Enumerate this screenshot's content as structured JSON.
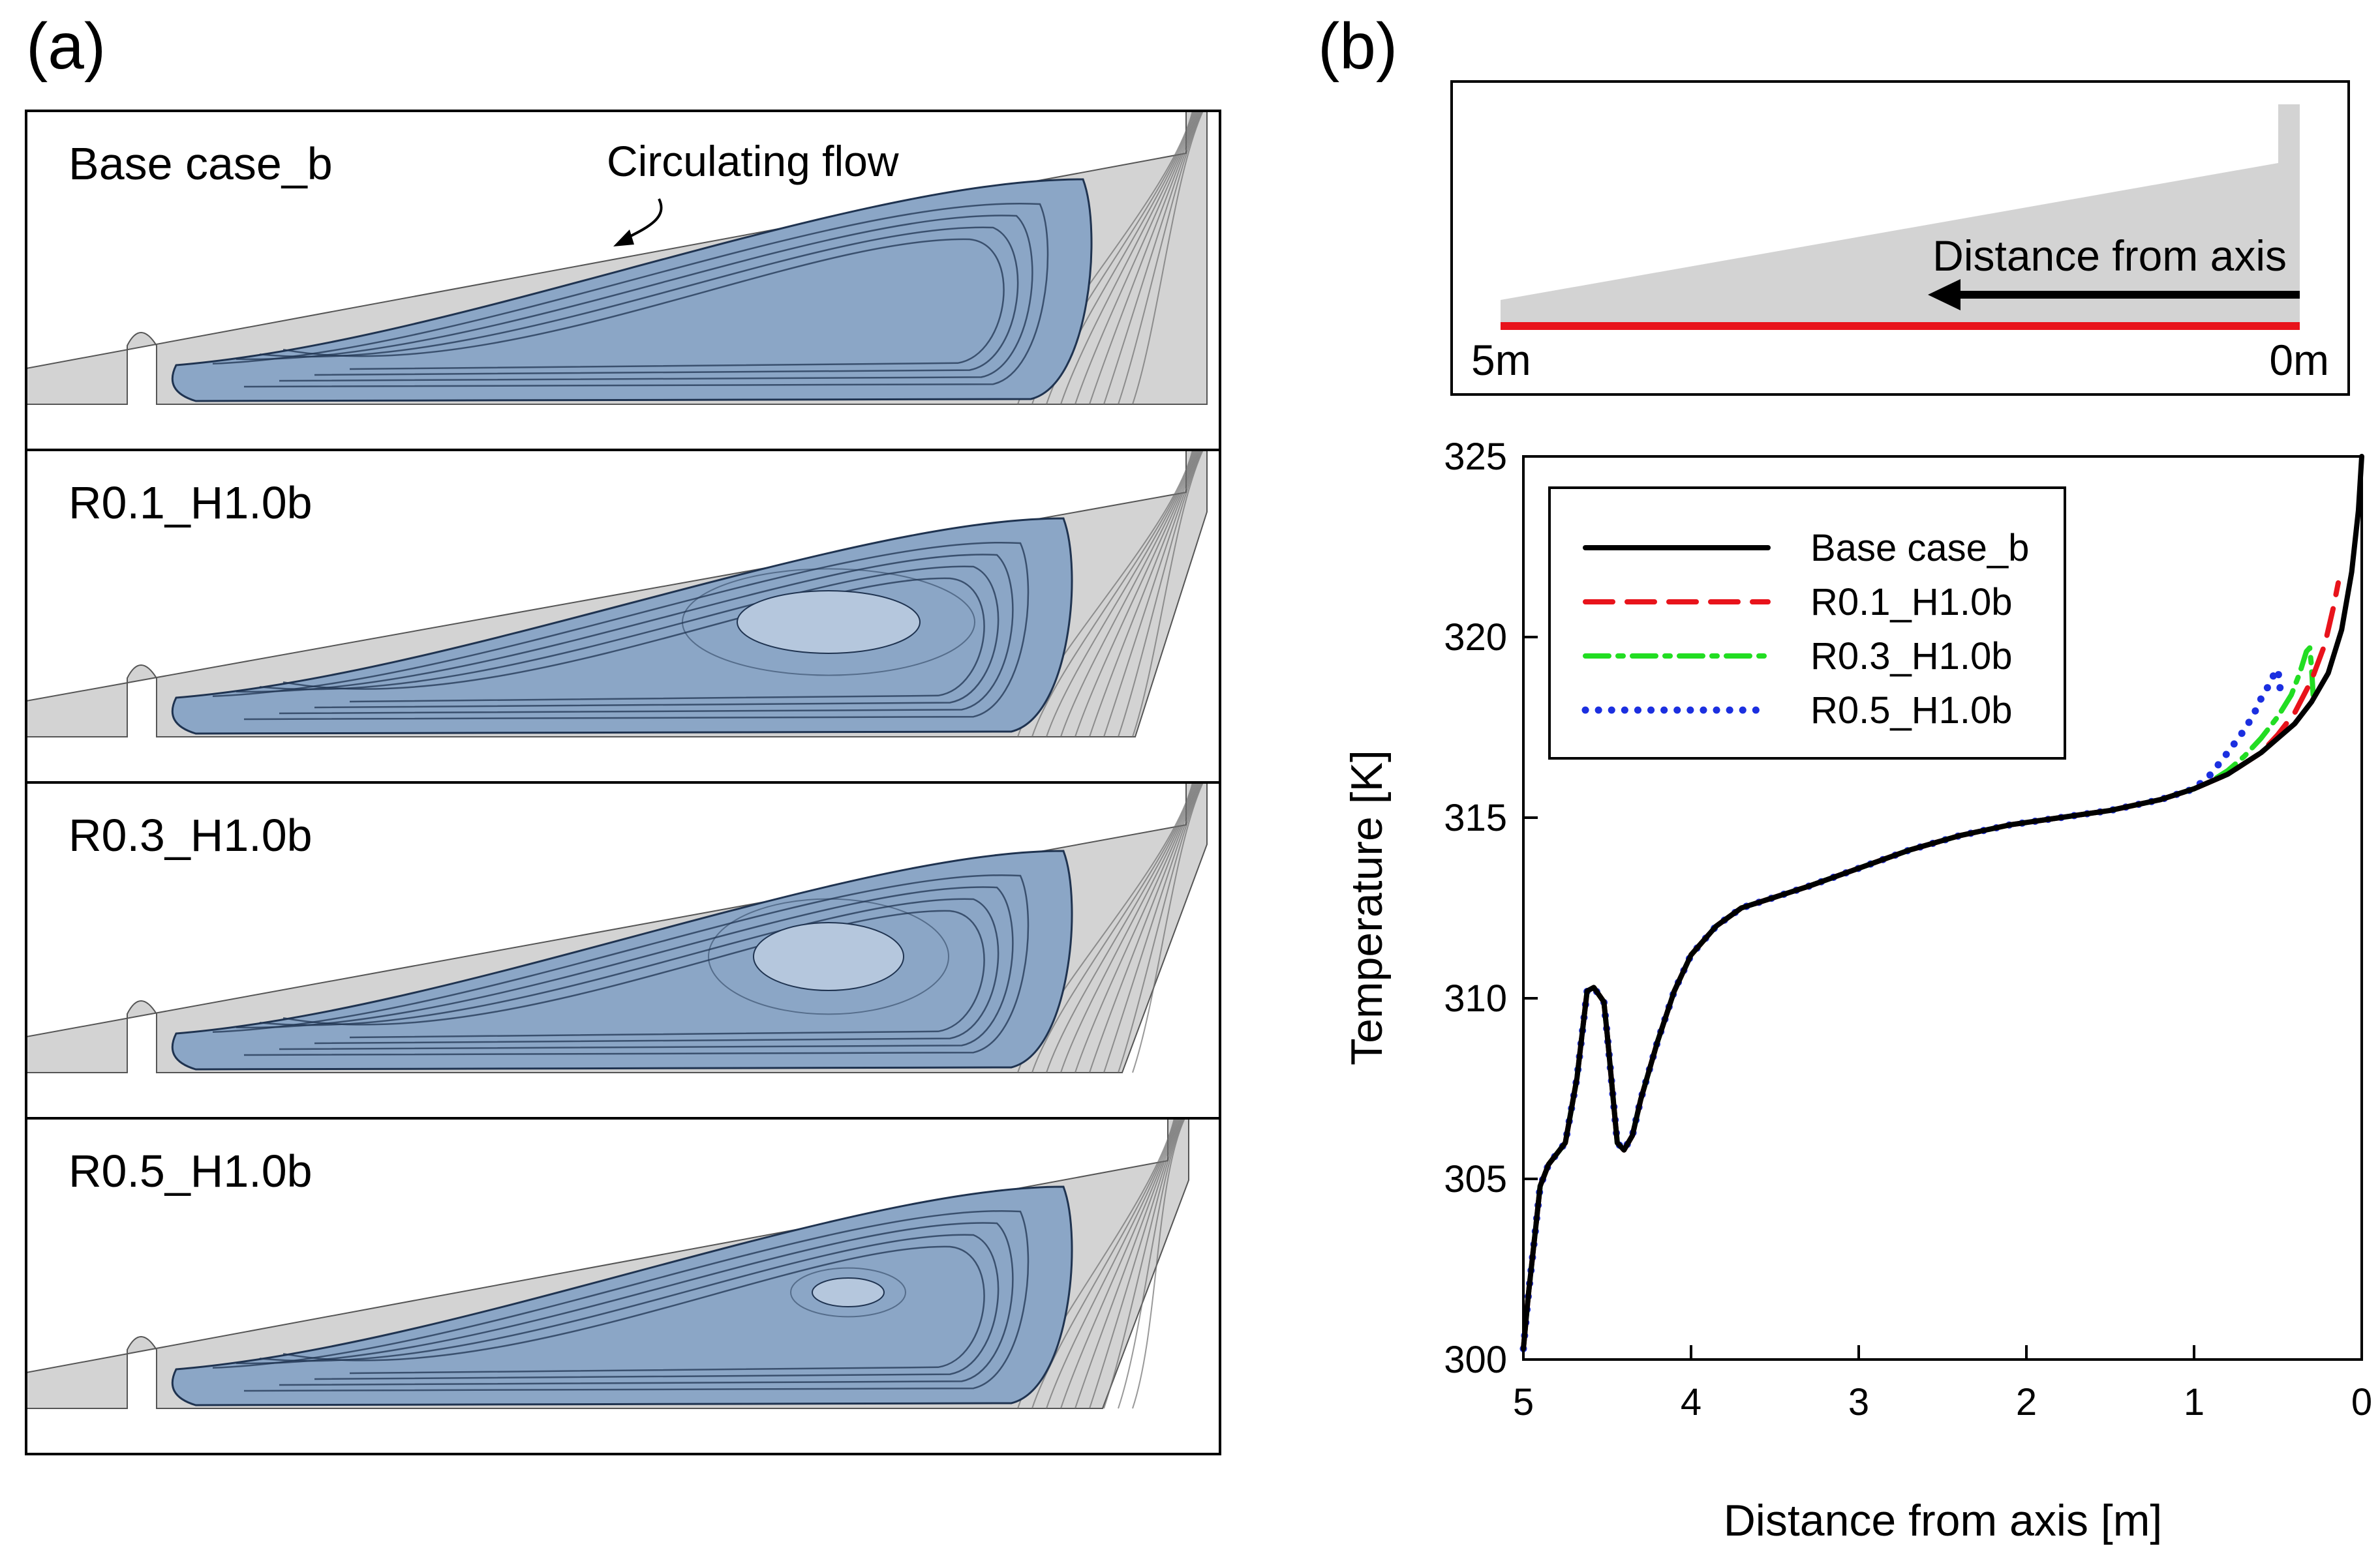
{
  "panel_a": {
    "letter": "(a)",
    "annotation": "Circulating flow",
    "cases": [
      {
        "label": "Base case_b",
        "vortex": "none"
      },
      {
        "label": "R0.1_H1.0b",
        "vortex": "large"
      },
      {
        "label": "R0.3_H1.0b",
        "vortex": "medium"
      },
      {
        "label": "R0.5_H1.0b",
        "vortex": "small"
      }
    ],
    "colors": {
      "fluid": "#8ba6c6",
      "fluid_light": "#b5c7dd",
      "vortex_line": "#1f3350",
      "domain": "#d3d3d3",
      "streamline": "#6e6e6e"
    }
  },
  "panel_b": {
    "letter": "(b)",
    "inset": {
      "arrow_label": "Distance from axis",
      "left_label": "5m",
      "right_label": "0m",
      "line_color": "#e8131b",
      "domain_color": "#d3d3d3"
    }
  },
  "chart_data": {
    "type": "line",
    "xlabel": "Distance from axis [m]",
    "ylabel": "Temperature [K]",
    "xlim": [
      5,
      0
    ],
    "ylim": [
      300,
      325
    ],
    "x_reversed": true,
    "xticks": [
      "5",
      "4",
      "3",
      "2",
      "1",
      "0"
    ],
    "yticks": [
      "300",
      "305",
      "310",
      "315",
      "320",
      "325"
    ],
    "legend_position": "top-left",
    "grid": false,
    "series": [
      {
        "name": "Base case_b",
        "color": "#000000",
        "style": "solid",
        "x": [
          5.0,
          4.97,
          4.93,
          4.9,
          4.85,
          4.75,
          4.68,
          4.62,
          4.58,
          4.55,
          4.52,
          4.5,
          4.47,
          4.44,
          4.4,
          4.35,
          4.3,
          4.2,
          4.1,
          4.0,
          3.85,
          3.7,
          3.5,
          3.3,
          3.0,
          2.7,
          2.4,
          2.1,
          1.8,
          1.5,
          1.2,
          1.0,
          0.9,
          0.8,
          0.7,
          0.6,
          0.5,
          0.4,
          0.3,
          0.2,
          0.12,
          0.06,
          0.02,
          0.0
        ],
        "y": [
          300.3,
          301.8,
          303.5,
          304.8,
          305.4,
          306.0,
          307.8,
          310.2,
          310.3,
          310.1,
          309.9,
          309.0,
          307.5,
          306.0,
          305.8,
          306.2,
          307.2,
          308.8,
          310.2,
          311.2,
          312.0,
          312.5,
          312.8,
          313.1,
          313.6,
          314.1,
          314.5,
          314.8,
          315.0,
          315.2,
          315.5,
          315.8,
          316.0,
          316.2,
          316.5,
          316.8,
          317.2,
          317.6,
          318.2,
          319.0,
          320.2,
          321.8,
          323.5,
          325.0
        ]
      },
      {
        "name": "R0.1_H1.0b",
        "color": "#e8131b",
        "style": "dashed",
        "x": [
          5.0,
          4.97,
          4.93,
          4.9,
          4.85,
          4.75,
          4.68,
          4.62,
          4.58,
          4.55,
          4.52,
          4.5,
          4.47,
          4.44,
          4.4,
          4.35,
          4.3,
          4.2,
          4.1,
          4.0,
          3.85,
          3.7,
          3.5,
          3.3,
          3.0,
          2.7,
          2.4,
          2.1,
          1.8,
          1.5,
          1.2,
          1.0,
          0.9,
          0.8,
          0.7,
          0.6,
          0.5,
          0.4,
          0.3,
          0.22,
          0.17,
          0.14
        ],
        "y": [
          300.3,
          301.8,
          303.5,
          304.8,
          305.4,
          306.0,
          307.8,
          310.2,
          310.3,
          310.1,
          309.9,
          309.0,
          307.5,
          306.0,
          305.8,
          306.2,
          307.2,
          308.8,
          310.2,
          311.2,
          312.0,
          312.5,
          312.8,
          313.1,
          313.6,
          314.1,
          314.5,
          314.8,
          315.0,
          315.2,
          315.5,
          315.8,
          316.0,
          316.2,
          316.5,
          316.8,
          317.3,
          317.9,
          318.8,
          319.8,
          320.8,
          321.5
        ]
      },
      {
        "name": "R0.3_H1.0b",
        "color": "#22dd22",
        "style": "dashdot",
        "x": [
          5.0,
          4.97,
          4.93,
          4.9,
          4.85,
          4.75,
          4.68,
          4.62,
          4.58,
          4.55,
          4.52,
          4.5,
          4.47,
          4.44,
          4.4,
          4.35,
          4.3,
          4.2,
          4.1,
          4.0,
          3.85,
          3.7,
          3.5,
          3.3,
          3.0,
          2.7,
          2.4,
          2.1,
          1.8,
          1.5,
          1.2,
          1.0,
          0.9,
          0.8,
          0.7,
          0.6,
          0.5,
          0.42,
          0.37,
          0.33,
          0.31,
          0.3,
          0.29
        ],
        "y": [
          300.3,
          301.8,
          303.5,
          304.8,
          305.4,
          306.0,
          307.8,
          310.2,
          310.3,
          310.1,
          309.9,
          309.0,
          307.5,
          306.0,
          305.8,
          306.2,
          307.2,
          308.8,
          310.2,
          311.2,
          312.0,
          312.5,
          312.8,
          313.1,
          313.6,
          314.1,
          314.5,
          314.8,
          315.0,
          315.2,
          315.5,
          315.8,
          316.0,
          316.3,
          316.7,
          317.2,
          317.8,
          318.4,
          319.0,
          319.6,
          319.7,
          319.2,
          318.4
        ]
      },
      {
        "name": "R0.5_H1.0b",
        "color": "#1b2fe0",
        "style": "dotted",
        "x": [
          5.0,
          4.97,
          4.93,
          4.9,
          4.85,
          4.75,
          4.68,
          4.62,
          4.58,
          4.55,
          4.52,
          4.5,
          4.47,
          4.44,
          4.4,
          4.35,
          4.3,
          4.2,
          4.1,
          4.0,
          3.85,
          3.7,
          3.5,
          3.3,
          3.0,
          2.7,
          2.4,
          2.1,
          1.8,
          1.5,
          1.2,
          1.0,
          0.9,
          0.8,
          0.72,
          0.65,
          0.6,
          0.55,
          0.52,
          0.5,
          0.49,
          0.48
        ],
        "y": [
          300.3,
          301.8,
          303.5,
          304.8,
          305.4,
          306.0,
          307.8,
          310.2,
          310.3,
          310.1,
          309.9,
          309.0,
          307.5,
          306.0,
          305.8,
          306.2,
          307.2,
          308.8,
          310.2,
          311.2,
          312.0,
          312.5,
          312.8,
          313.1,
          313.6,
          314.1,
          314.5,
          314.8,
          315.0,
          315.2,
          315.5,
          315.8,
          316.2,
          316.8,
          317.3,
          317.8,
          318.3,
          318.7,
          319.0,
          319.1,
          318.7,
          318.3
        ]
      }
    ]
  }
}
